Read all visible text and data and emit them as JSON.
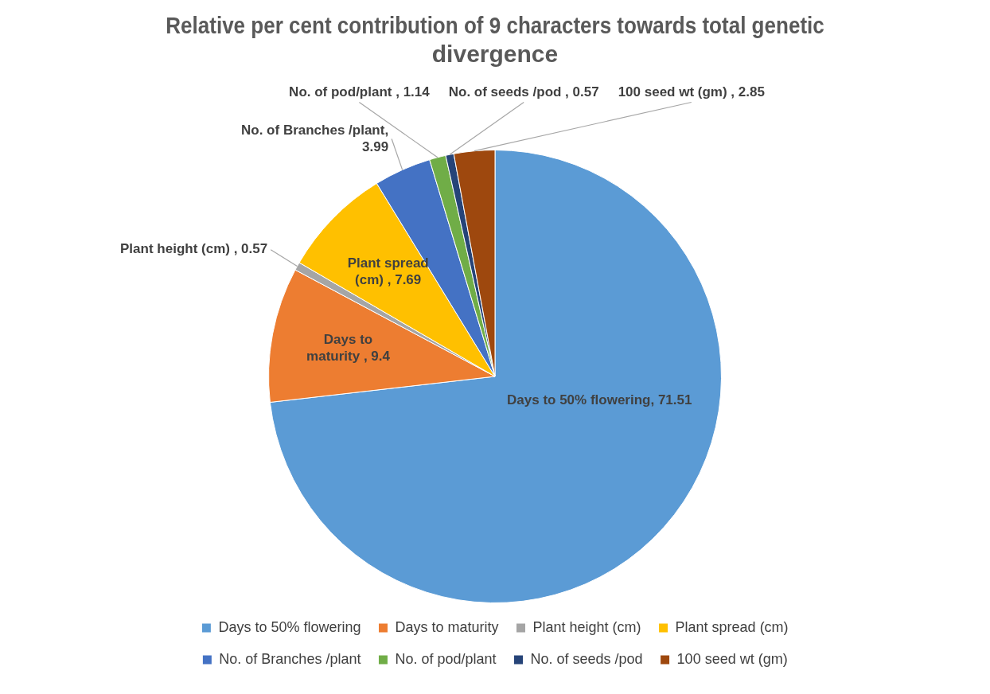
{
  "chart_data": {
    "type": "pie",
    "title": "Relative per cent contribution of 9 characters towards total genetic divergence",
    "categories": [
      "Days to 50% flowering",
      "Days to maturity",
      "Plant height (cm)",
      "Plant spread (cm)",
      "No. of Branches /plant",
      "No. of pod/plant",
      "No. of seeds /pod",
      "100 seed wt (gm)"
    ],
    "values": [
      71.51,
      9.4,
      0.57,
      7.69,
      3.99,
      1.14,
      0.57,
      2.85
    ],
    "colors": [
      "#5b9bd5",
      "#ed7d31",
      "#a5a5a5",
      "#ffc000",
      "#4472c4",
      "#70ad47",
      "#264478",
      "#9e480e"
    ],
    "value_labels": [
      "Days to 50% flowering, 71.51",
      "Days to maturity , 9.4",
      "Plant height (cm) , 0.57",
      "Plant spread (cm) , 7.69",
      "No. of Branches /plant, 3.99",
      "No. of pod/plant , 1.14",
      "No. of seeds /pod , 0.57",
      "100 seed wt (gm) , 2.85"
    ],
    "legend": "bottom"
  }
}
